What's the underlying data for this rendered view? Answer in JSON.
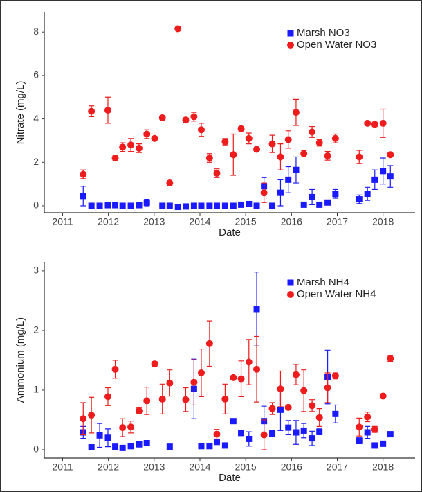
{
  "chart_data": [
    {
      "type": "scatter",
      "xlabel": "Date",
      "ylabel": "Nitrate (mg/L)",
      "xlim": [
        2010.6,
        2018.7
      ],
      "ylim": [
        -0.32,
        8.9
      ],
      "xticks": [
        2011,
        2012,
        2013,
        2014,
        2015,
        2016,
        2017,
        2018
      ],
      "yticks": [
        0,
        2,
        4,
        6,
        8
      ],
      "legend": "top-right",
      "series": [
        {
          "name": "Marsh NO3",
          "color": "#1a1aff",
          "marker": "square",
          "x": [
            2011.45,
            2011.63,
            2011.81,
            2011.99,
            2012.15,
            2012.31,
            2012.49,
            2012.67,
            2012.84,
            2013.18,
            2013.34,
            2013.52,
            2013.69,
            2013.87,
            2014.03,
            2014.21,
            2014.37,
            2014.55,
            2014.73,
            2014.9,
            2015.07,
            2015.24,
            2015.4,
            2015.58,
            2015.76,
            2015.93,
            2016.1,
            2016.27,
            2016.45,
            2016.61,
            2016.79,
            2016.96,
            2017.48,
            2017.66,
            2017.82,
            2018.0,
            2018.16
          ],
          "values": [
            0.45,
            0,
            0,
            0.03,
            0.03,
            0,
            0,
            0.03,
            0.15,
            0,
            0,
            -0.05,
            -0.03,
            0,
            0,
            0,
            0,
            0,
            0,
            0.05,
            0.08,
            0,
            0.9,
            0,
            0.6,
            1.2,
            1.65,
            0.05,
            0.4,
            0.05,
            0.15,
            0.55,
            0.3,
            0.55,
            1.2,
            1.6,
            1.35
          ],
          "errors": [
            0.45,
            0.05,
            0.03,
            0.03,
            0.03,
            0.03,
            0.03,
            0.03,
            0.15,
            0.03,
            0.03,
            0.03,
            0.03,
            0.03,
            0.03,
            0.03,
            0.03,
            0.03,
            0.03,
            0.03,
            0.03,
            0.03,
            0.4,
            0.03,
            0.6,
            0.6,
            0.6,
            0.03,
            0.35,
            0.03,
            0.1,
            0.2,
            0.2,
            0.3,
            0.45,
            0.6,
            0.5
          ]
        },
        {
          "name": "Open Water NO3",
          "color": "#ee1c1c",
          "marker": "circle",
          "x": [
            2011.45,
            2011.63,
            2011.99,
            2012.15,
            2012.31,
            2012.49,
            2012.67,
            2012.84,
            2013.01,
            2013.18,
            2013.34,
            2013.52,
            2013.69,
            2013.87,
            2014.03,
            2014.21,
            2014.37,
            2014.55,
            2014.73,
            2014.9,
            2015.07,
            2015.24,
            2015.4,
            2015.58,
            2015.76,
            2015.93,
            2016.1,
            2016.27,
            2016.45,
            2016.61,
            2016.79,
            2016.96,
            2017.48,
            2017.66,
            2017.82,
            2018.0,
            2018.16
          ],
          "values": [
            1.45,
            4.35,
            4.4,
            2.2,
            2.7,
            2.8,
            2.65,
            3.3,
            3.1,
            4.05,
            1.05,
            8.15,
            3.95,
            4.1,
            3.5,
            2.2,
            1.5,
            2.95,
            2.35,
            3.55,
            3.1,
            2.6,
            0.6,
            2.85,
            2.25,
            3.05,
            4.3,
            2.4,
            3.4,
            2.9,
            2.3,
            3.1,
            2.25,
            3.8,
            3.75,
            3.8,
            2.35
          ],
          "errors": [
            0.2,
            0.25,
            0.6,
            0.1,
            0.2,
            0.3,
            0.2,
            0.2,
            0.1,
            0.05,
            0.05,
            0.05,
            0.1,
            0.2,
            0.3,
            0.2,
            0.2,
            0.15,
            0.95,
            0.1,
            0.25,
            0.1,
            0.45,
            0.4,
            0.6,
            0.4,
            0.6,
            0.15,
            0.25,
            0.15,
            0.2,
            0.2,
            0.3,
            0.1,
            0.1,
            0.65,
            0.05
          ]
        }
      ]
    },
    {
      "type": "scatter",
      "xlabel": "Date",
      "ylabel": "Ammonium (mg/L)",
      "xlim": [
        2010.6,
        2018.7
      ],
      "ylim": [
        -0.14,
        3.15
      ],
      "xticks": [
        2011,
        2012,
        2013,
        2014,
        2015,
        2016,
        2017,
        2018
      ],
      "yticks": [
        0,
        1,
        2,
        3
      ],
      "legend": "top-right",
      "series": [
        {
          "name": "Marsh NH4",
          "color": "#1a1aff",
          "marker": "square",
          "x": [
            2011.45,
            2011.63,
            2011.81,
            2011.99,
            2012.15,
            2012.31,
            2012.49,
            2012.67,
            2012.84,
            2013.34,
            2013.87,
            2014.03,
            2014.21,
            2014.37,
            2014.55,
            2014.73,
            2014.9,
            2015.07,
            2015.24,
            2015.4,
            2015.58,
            2015.76,
            2015.93,
            2016.1,
            2016.27,
            2016.45,
            2016.61,
            2016.79,
            2016.96,
            2017.48,
            2017.66,
            2017.82,
            2018.0,
            2018.16
          ],
          "values": [
            0.29,
            0.04,
            0.24,
            0.2,
            0.05,
            0.03,
            0.06,
            0.09,
            0.11,
            0.05,
            1.02,
            0.06,
            0.06,
            0.13,
            0.07,
            0.48,
            0.28,
            0.18,
            2.36,
            0.48,
            0.27,
            0.67,
            0.37,
            0.29,
            0.32,
            0.19,
            0.3,
            1.22,
            0.6,
            0.15,
            0.29,
            0.07,
            0.1,
            0.26
          ],
          "errors": [
            0.1,
            0.02,
            0.2,
            0.15,
            0.02,
            0.02,
            0.02,
            0.02,
            0.03,
            0.02,
            0.5,
            0.02,
            0.02,
            0.03,
            0.02,
            0.03,
            0.02,
            0.12,
            0.62,
            0.25,
            0.05,
            0.35,
            0.12,
            0.2,
            0.12,
            0.12,
            0.05,
            0.45,
            0.15,
            0.05,
            0.1,
            0.02,
            0.02,
            0.02
          ]
        },
        {
          "name": "Open Water NH4",
          "color": "#ee1c1c",
          "marker": "circle",
          "x": [
            2011.45,
            2011.63,
            2011.99,
            2012.15,
            2012.31,
            2012.49,
            2012.67,
            2012.84,
            2013.01,
            2013.18,
            2013.34,
            2013.69,
            2013.87,
            2014.03,
            2014.21,
            2014.37,
            2014.55,
            2014.73,
            2014.9,
            2015.07,
            2015.24,
            2015.4,
            2015.58,
            2015.76,
            2015.93,
            2016.1,
            2016.27,
            2016.45,
            2016.61,
            2016.79,
            2016.96,
            2017.48,
            2017.66,
            2017.82,
            2018.0,
            2018.16
          ],
          "values": [
            0.52,
            0.58,
            0.89,
            1.35,
            0.37,
            0.38,
            0.65,
            0.82,
            1.44,
            0.85,
            1.12,
            0.84,
            1.13,
            1.29,
            1.78,
            0.26,
            0.85,
            1.21,
            1.19,
            1.47,
            1.35,
            0.25,
            0.69,
            1.02,
            0.71,
            1.26,
            0.99,
            0.74,
            0.54,
            1.04,
            1.24,
            0.38,
            0.55,
            0.34,
            0.9,
            1.53
          ],
          "errors": [
            0.27,
            0.3,
            0.15,
            0.15,
            0.15,
            0.1,
            0.05,
            0.23,
            0.04,
            0.25,
            0.22,
            0.2,
            0.38,
            0.4,
            0.38,
            0.08,
            0.25,
            0.03,
            0.3,
            0.38,
            0.55,
            0.25,
            0.1,
            0.3,
            0.04,
            0.17,
            0.35,
            0.1,
            0.15,
            0.25,
            0.05,
            0.15,
            0.08,
            0.05,
            0.03,
            0.05
          ]
        }
      ]
    }
  ]
}
